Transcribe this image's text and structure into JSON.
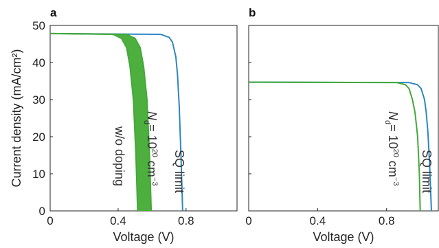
{
  "chart_data": [
    {
      "type": "line",
      "panel_label": "a",
      "xlabel": "Voltage (V)",
      "ylabel": "Current density (mA/cm²)",
      "xlim": [
        0,
        1.1
      ],
      "ylim": [
        0,
        50
      ],
      "xticks": [
        0,
        0.4,
        0.8
      ],
      "x_tick_labels": [
        "0",
        "0.4",
        "0.8"
      ],
      "yticks": [
        0,
        10,
        20,
        30,
        40,
        50
      ],
      "y_tick_labels": [
        "0",
        "10",
        "20",
        "30",
        "40",
        "50"
      ],
      "series": [
        {
          "label": "SQ limit",
          "color": "#2e86c1",
          "x": [
            0,
            0.65,
            0.7,
            0.72,
            0.74,
            0.75,
            0.76,
            0.77,
            0.78
          ],
          "y": [
            47.8,
            47.6,
            46.8,
            45.5,
            41.5,
            36.5,
            28.0,
            15.0,
            0
          ]
        },
        {
          "label": "N_d = 10^20 cm^-3",
          "color": "#45a83a",
          "x": [
            0,
            0.45,
            0.5,
            0.53,
            0.55,
            0.57,
            0.585,
            0.595
          ],
          "y": [
            47.8,
            47.6,
            46.5,
            44.0,
            39.0,
            30.0,
            15.0,
            0
          ]
        },
        {
          "label": "w/o doping",
          "color": "#45a83a",
          "x": [
            0,
            0.37,
            0.42,
            0.45,
            0.47,
            0.49,
            0.505,
            0.515
          ],
          "y": [
            47.8,
            47.6,
            46.5,
            44.0,
            39.0,
            30.0,
            15.0,
            0
          ]
        }
      ],
      "fill_between": {
        "color": "#4caf3e",
        "between": [
          "w/o doping",
          "N_d = 10^20 cm^-3"
        ]
      },
      "annotations": {
        "sq_limit": "SQ limit",
        "nd_label": {
          "N": "N",
          "sub": "d",
          "mid": "= 10",
          "sup_1": "20",
          "unit": " cm",
          "sup_2": "−3"
        },
        "no_doping": "w/o doping"
      }
    },
    {
      "type": "line",
      "panel_label": "b",
      "xlabel": "Voltage (V)",
      "xlim": [
        0,
        1.1
      ],
      "ylim": [
        0,
        50
      ],
      "xticks": [
        0,
        0.4,
        0.8
      ],
      "x_tick_labels": [
        "0",
        "0.4",
        "0.8"
      ],
      "yticks": [
        0,
        10,
        20,
        30,
        40,
        50
      ],
      "series": [
        {
          "label": "SQ limit",
          "color": "#2e86c1",
          "x": [
            0,
            0.93,
            0.98,
            1.0,
            1.02,
            1.03,
            1.04,
            1.05,
            1.06
          ],
          "y": [
            34.7,
            34.6,
            34.0,
            33.0,
            30.0,
            26.5,
            21.0,
            12.0,
            0
          ]
        },
        {
          "label": "N_d = 10^20 cm^-3",
          "color": "#45a83a",
          "x": [
            0,
            0.86,
            0.91,
            0.93,
            0.95,
            0.965,
            0.98,
            0.99,
            0.995
          ],
          "y": [
            34.7,
            34.6,
            34.0,
            33.0,
            30.0,
            26.5,
            20.0,
            10.0,
            0
          ]
        }
      ],
      "annotations": {
        "sq_limit": "SQ limit",
        "nd_label": {
          "N": "N",
          "sub": "d",
          "mid": "= 10",
          "sup_1": "20",
          "unit": " cm",
          "sup_2": "−3"
        }
      }
    }
  ]
}
